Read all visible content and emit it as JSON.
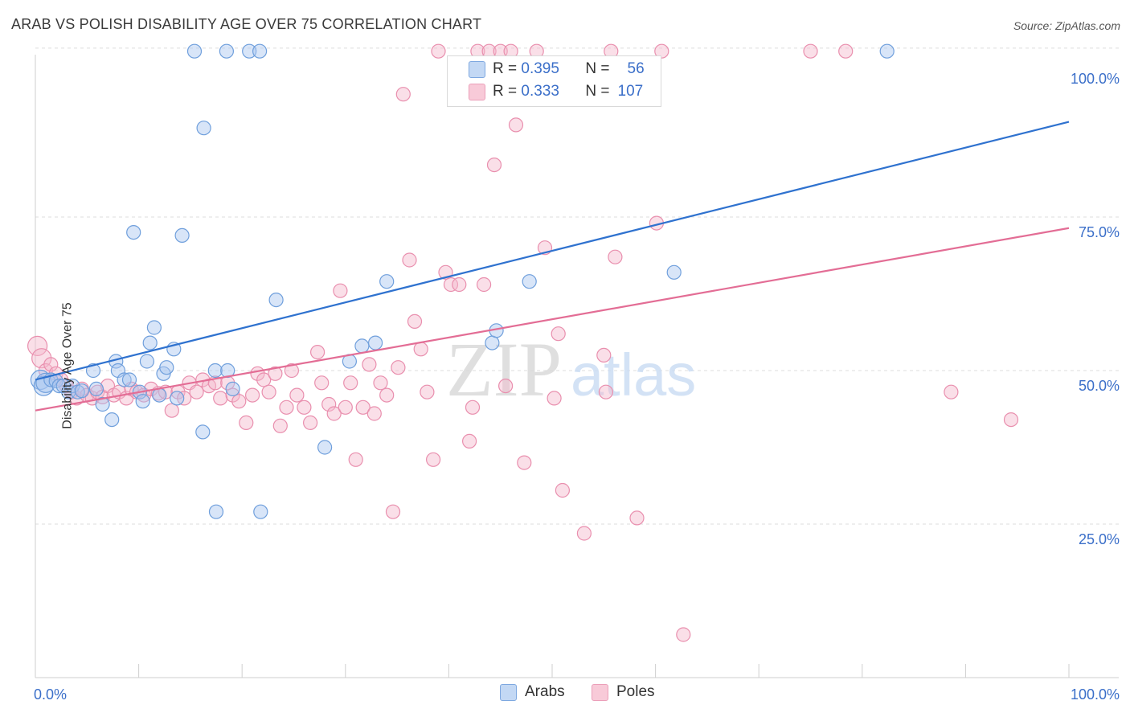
{
  "title": "ARAB VS POLISH DISABILITY AGE OVER 75 CORRELATION CHART",
  "source": "Source: ZipAtlas.com",
  "colors": {
    "blue_fill": "#a9c6ef",
    "blue_stroke": "#6f9fdc",
    "blue_line": "#2f72cf",
    "pink_fill": "#f5b8cb",
    "pink_stroke": "#e98fae",
    "pink_line": "#e36d95",
    "axis_value": "#3b6fc9"
  },
  "stats": {
    "arabs": {
      "r_label": "R =",
      "r_value": "0.395",
      "n_label": "N =",
      "n_value": "56"
    },
    "poles": {
      "r_label": "R =",
      "r_value": "0.333",
      "n_label": "N =",
      "n_value": "107"
    }
  },
  "legend": {
    "arabs": "Arabs",
    "poles": "Poles"
  },
  "watermark": {
    "zip": "ZIP",
    "atlas": "atlas"
  },
  "chart_data": {
    "type": "scatter",
    "title": "ARAB VS POLISH DISABILITY AGE OVER 75 CORRELATION CHART",
    "xlabel": "",
    "ylabel": "Disability Age Over 75",
    "xlim": [
      0,
      100
    ],
    "ylim": [
      0,
      105
    ],
    "x_tick_labels": [
      "0.0%",
      "100.0%"
    ],
    "y_ticks": [
      25,
      50,
      75,
      100
    ],
    "y_tick_labels": [
      "25.0%",
      "50.0%",
      "75.0%",
      "100.0%"
    ],
    "grid": true,
    "series": [
      {
        "name": "Arabs",
        "color": "#a9c6ef",
        "trendline": {
          "x": [
            0,
            100
          ],
          "y": [
            48.5,
            90.5
          ]
        },
        "points": [
          [
            0.5,
            48.5
          ],
          [
            0.8,
            47.5
          ],
          [
            1.0,
            48
          ],
          [
            1.5,
            48.5
          ],
          [
            2.0,
            48.3
          ],
          [
            2.3,
            47.5
          ],
          [
            2.7,
            47.5
          ],
          [
            3.2,
            46.5
          ],
          [
            3.6,
            47.5
          ],
          [
            4.1,
            46.5
          ],
          [
            4.5,
            46.7
          ],
          [
            5.6,
            50
          ],
          [
            5.9,
            47.0
          ],
          [
            6.5,
            44.5
          ],
          [
            7.4,
            42
          ],
          [
            7.8,
            51.5
          ],
          [
            8.0,
            50
          ],
          [
            8.6,
            48.5
          ],
          [
            9.1,
            48.5
          ],
          [
            9.5,
            72.5
          ],
          [
            10.1,
            46.5
          ],
          [
            10.4,
            45
          ],
          [
            10.8,
            51.5
          ],
          [
            11.1,
            54.5
          ],
          [
            11.5,
            57
          ],
          [
            12.0,
            46
          ],
          [
            12.4,
            49.5
          ],
          [
            12.7,
            50.5
          ],
          [
            13.4,
            53.5
          ],
          [
            13.7,
            45.5
          ],
          [
            14.2,
            72
          ],
          [
            15.4,
            102
          ],
          [
            16.3,
            89.5
          ],
          [
            16.2,
            40
          ],
          [
            17.4,
            50
          ],
          [
            17.5,
            27
          ],
          [
            18.5,
            102
          ],
          [
            18.6,
            50
          ],
          [
            19.1,
            47
          ],
          [
            20.7,
            102
          ],
          [
            21.7,
            102
          ],
          [
            21.8,
            27
          ],
          [
            23.3,
            61.5
          ],
          [
            28.0,
            37.5
          ],
          [
            30.4,
            51.5
          ],
          [
            31.6,
            54
          ],
          [
            32.9,
            54.5
          ],
          [
            34.0,
            64.5
          ],
          [
            44.2,
            54.5
          ],
          [
            44.6,
            56.5
          ],
          [
            47.8,
            64.5
          ],
          [
            61.8,
            66
          ],
          [
            82.4,
            102
          ]
        ]
      },
      {
        "name": "Poles",
        "color": "#f5b8cb",
        "trendline": {
          "x": [
            0,
            100
          ],
          "y": [
            43.5,
            73.2
          ]
        },
        "points": [
          [
            0.2,
            54
          ],
          [
            0.6,
            52
          ],
          [
            1.0,
            50
          ],
          [
            1.5,
            51
          ],
          [
            2.0,
            49.5
          ],
          [
            2.5,
            48.5
          ],
          [
            3.0,
            47.5
          ],
          [
            3.5,
            46.5
          ],
          [
            4.0,
            45.5
          ],
          [
            4.5,
            47
          ],
          [
            5.0,
            46
          ],
          [
            5.5,
            45.5
          ],
          [
            6.0,
            46.5
          ],
          [
            6.5,
            45.7
          ],
          [
            7.0,
            47.5
          ],
          [
            7.6,
            46
          ],
          [
            8.1,
            46.5
          ],
          [
            8.8,
            45.5
          ],
          [
            9.3,
            47
          ],
          [
            9.8,
            46.5
          ],
          [
            10.5,
            46
          ],
          [
            11.2,
            47
          ],
          [
            11.9,
            46.3
          ],
          [
            12.6,
            46.5
          ],
          [
            13.2,
            43.5
          ],
          [
            13.8,
            46.5
          ],
          [
            14.4,
            45.5
          ],
          [
            14.9,
            48
          ],
          [
            15.6,
            46.5
          ],
          [
            16.2,
            48.5
          ],
          [
            16.8,
            47.5
          ],
          [
            17.4,
            48
          ],
          [
            17.9,
            45.5
          ],
          [
            18.6,
            48
          ],
          [
            19.1,
            46
          ],
          [
            19.7,
            45
          ],
          [
            20.4,
            41.5
          ],
          [
            21.0,
            46
          ],
          [
            21.5,
            49.5
          ],
          [
            22.1,
            48.5
          ],
          [
            22.6,
            46.5
          ],
          [
            23.2,
            49.5
          ],
          [
            23.7,
            41
          ],
          [
            24.3,
            44
          ],
          [
            24.8,
            50
          ],
          [
            25.3,
            46
          ],
          [
            26.0,
            44
          ],
          [
            26.6,
            41.5
          ],
          [
            27.3,
            53
          ],
          [
            27.7,
            48
          ],
          [
            28.4,
            44.5
          ],
          [
            28.9,
            43
          ],
          [
            29.5,
            63
          ],
          [
            30.0,
            44
          ],
          [
            30.5,
            48
          ],
          [
            31.0,
            35.5
          ],
          [
            31.7,
            44
          ],
          [
            32.3,
            51
          ],
          [
            32.8,
            43
          ],
          [
            33.4,
            48
          ],
          [
            34.0,
            46
          ],
          [
            34.6,
            27
          ],
          [
            35.1,
            50.5
          ],
          [
            35.6,
            95
          ],
          [
            36.2,
            68
          ],
          [
            36.7,
            58
          ],
          [
            37.3,
            53.5
          ],
          [
            37.9,
            46.5
          ],
          [
            38.5,
            35.5
          ],
          [
            39.0,
            102
          ],
          [
            39.7,
            66
          ],
          [
            40.2,
            64
          ],
          [
            41.0,
            64
          ],
          [
            42.0,
            38.5
          ],
          [
            42.3,
            44
          ],
          [
            42.8,
            102
          ],
          [
            43.4,
            64
          ],
          [
            43.9,
            102
          ],
          [
            44.4,
            83.5
          ],
          [
            45.0,
            102
          ],
          [
            45.5,
            47.5
          ],
          [
            46.0,
            102
          ],
          [
            46.5,
            90
          ],
          [
            47.3,
            35
          ],
          [
            48.5,
            102
          ],
          [
            49.3,
            70
          ],
          [
            50.2,
            45.5
          ],
          [
            50.6,
            56
          ],
          [
            51.0,
            30.5
          ],
          [
            53.1,
            23.5
          ],
          [
            55.0,
            52.5
          ],
          [
            55.2,
            46.5
          ],
          [
            55.7,
            102
          ],
          [
            56.1,
            68.5
          ],
          [
            58.2,
            26
          ],
          [
            60.1,
            74
          ],
          [
            60.6,
            102
          ],
          [
            75.0,
            102
          ],
          [
            78.4,
            102
          ],
          [
            88.6,
            46.5
          ],
          [
            94.4,
            42
          ],
          [
            62.7,
            7
          ]
        ]
      }
    ]
  }
}
